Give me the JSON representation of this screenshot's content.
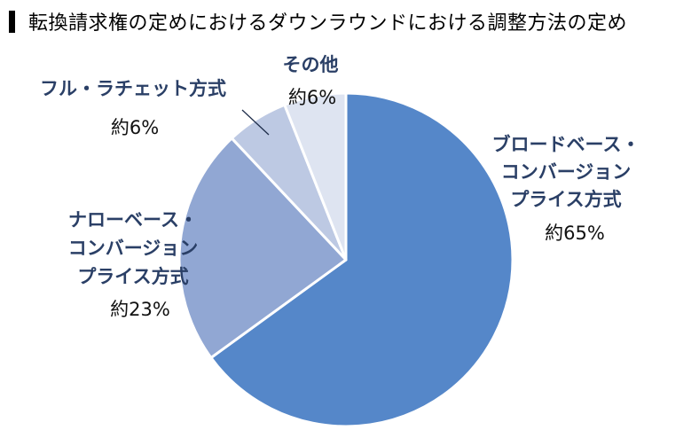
{
  "title": "転換請求権の定めにおけるダウンラウンドにおける調整方法の定め",
  "chart_data": {
    "type": "pie",
    "title": "転換請求権の定めにおけるダウンラウンドにおける調整方法の定め",
    "start_angle_deg": 0,
    "direction": "clockwise",
    "slices": [
      {
        "name_lines": [
          "ブロードベース・",
          "コンバージョン",
          "プライス方式"
        ],
        "value": 65,
        "value_label": "約65%",
        "color": "#5587c9"
      },
      {
        "name_lines": [
          "ナローベース・",
          "コンバージョン",
          "プライス方式"
        ],
        "value": 23,
        "value_label": "約23%",
        "color": "#91a7d3"
      },
      {
        "name_lines": [
          "フル・ラチェット方式"
        ],
        "value": 6,
        "value_label": "約6%",
        "color": "#bdc9e3"
      },
      {
        "name_lines": [
          "その他"
        ],
        "value": 6,
        "value_label": "約6%",
        "color": "#dee4f1"
      }
    ]
  }
}
